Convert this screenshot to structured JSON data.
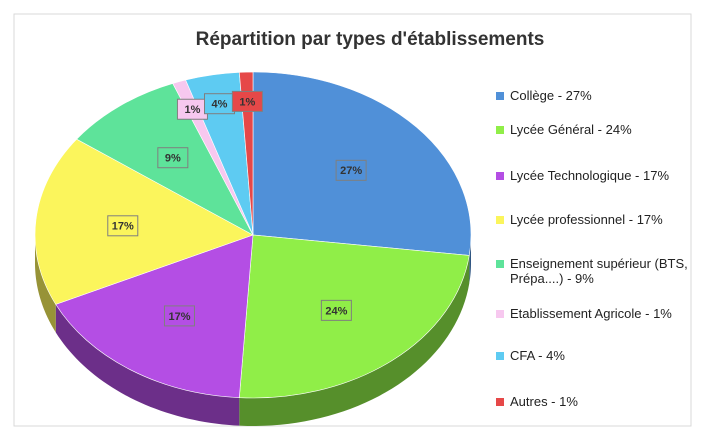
{
  "chart_data": {
    "type": "pie",
    "title": "Répartition par types d'établissements",
    "categories": [
      "Collège - 27%",
      "Lycée Général - 24%",
      "Lycée Technologique - 17%",
      "Lycée professionnel - 17%",
      "Enseignement supérieur (BTS, Prépa....) - 9%",
      "Etablissement Agricole - 1%",
      "CFA - 4%",
      "Autres - 1%"
    ],
    "values": [
      27,
      24,
      17,
      17,
      9,
      1,
      4,
      1
    ],
    "value_labels": [
      "27%",
      "24%",
      "17%",
      "17%",
      "9%",
      "1%",
      "4%",
      "1%"
    ],
    "colors": [
      "#5090d8",
      "#90ee48",
      "#b44ee4",
      "#fbf55c",
      "#5ee39a",
      "#f7c8ef",
      "#5ecbf2",
      "#e64848"
    ],
    "legend": "right"
  }
}
